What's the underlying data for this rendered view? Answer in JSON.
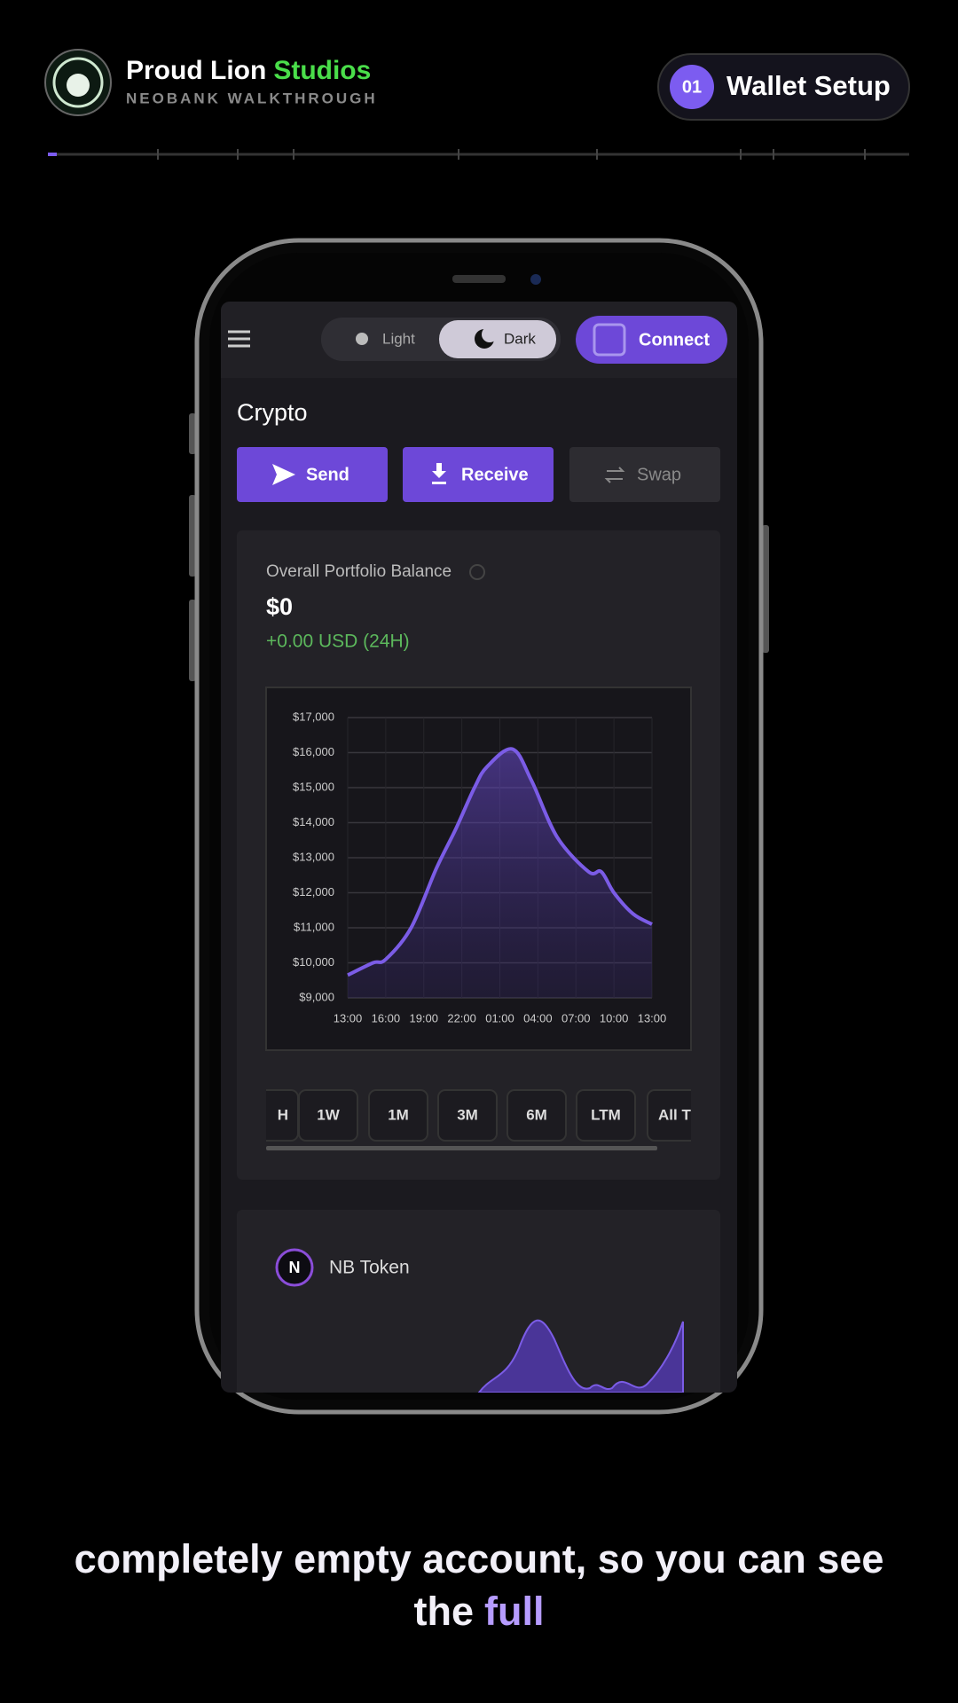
{
  "header": {
    "brand_primary": "Proud Lion",
    "brand_accent": "Studios",
    "subtitle": "NEOBANK WALKTHROUGH",
    "step_number": "01",
    "step_title": "Wallet Setup"
  },
  "app": {
    "theme_light": "Light",
    "theme_dark": "Dark",
    "connect": "Connect",
    "section_title": "Crypto",
    "actions": [
      "Send",
      "Receive",
      "Swap"
    ],
    "balance_label": "Overall Portfolio Balance",
    "balance": "$0",
    "change": "+0.00 USD (24H)",
    "ranges": [
      "H",
      "1W",
      "1M",
      "3M",
      "6M",
      "LTM",
      "All Ti"
    ],
    "token_icon": "N",
    "token_name": "NB Token"
  },
  "chart_data": {
    "type": "line",
    "x": [
      0,
      2,
      3,
      5,
      7,
      8.5,
      10,
      11,
      13,
      14.5,
      16.5,
      19,
      20,
      21,
      22.5,
      24
    ],
    "values": [
      9650,
      10000,
      10100,
      11000,
      12700,
      13800,
      15000,
      15600,
      16100,
      15200,
      13600,
      12600,
      12600,
      12000,
      11400,
      11100
    ],
    "color": "#7b5ce6",
    "xlim": [
      0,
      24
    ],
    "xticks": [
      {
        "value": 0,
        "label": "13:00"
      },
      {
        "value": 3,
        "label": "16:00"
      },
      {
        "value": 6,
        "label": "19:00"
      },
      {
        "value": 9,
        "label": "22:00"
      },
      {
        "value": 12,
        "label": "01:00"
      },
      {
        "value": 15,
        "label": "04:00"
      },
      {
        "value": 18,
        "label": "07:00"
      },
      {
        "value": 21,
        "label": "10:00"
      },
      {
        "value": 24,
        "label": "13:00"
      }
    ],
    "ylim": [
      9000,
      17000
    ],
    "yticks": [
      {
        "value": 9000,
        "label": "$9,000"
      },
      {
        "value": 10000,
        "label": "$10,000"
      },
      {
        "value": 11000,
        "label": "$11,000"
      },
      {
        "value": 12000,
        "label": "$12,000"
      },
      {
        "value": 13000,
        "label": "$13,000"
      },
      {
        "value": 14000,
        "label": "$14,000"
      },
      {
        "value": 15000,
        "label": "$15,000"
      },
      {
        "value": 16000,
        "label": "$16,000"
      },
      {
        "value": 17000,
        "label": "$17,000"
      }
    ],
    "grid": true
  },
  "caption": {
    "line1": "completely empty account, so you can see",
    "line2_plain": "the",
    "line2_highlight": "full"
  }
}
